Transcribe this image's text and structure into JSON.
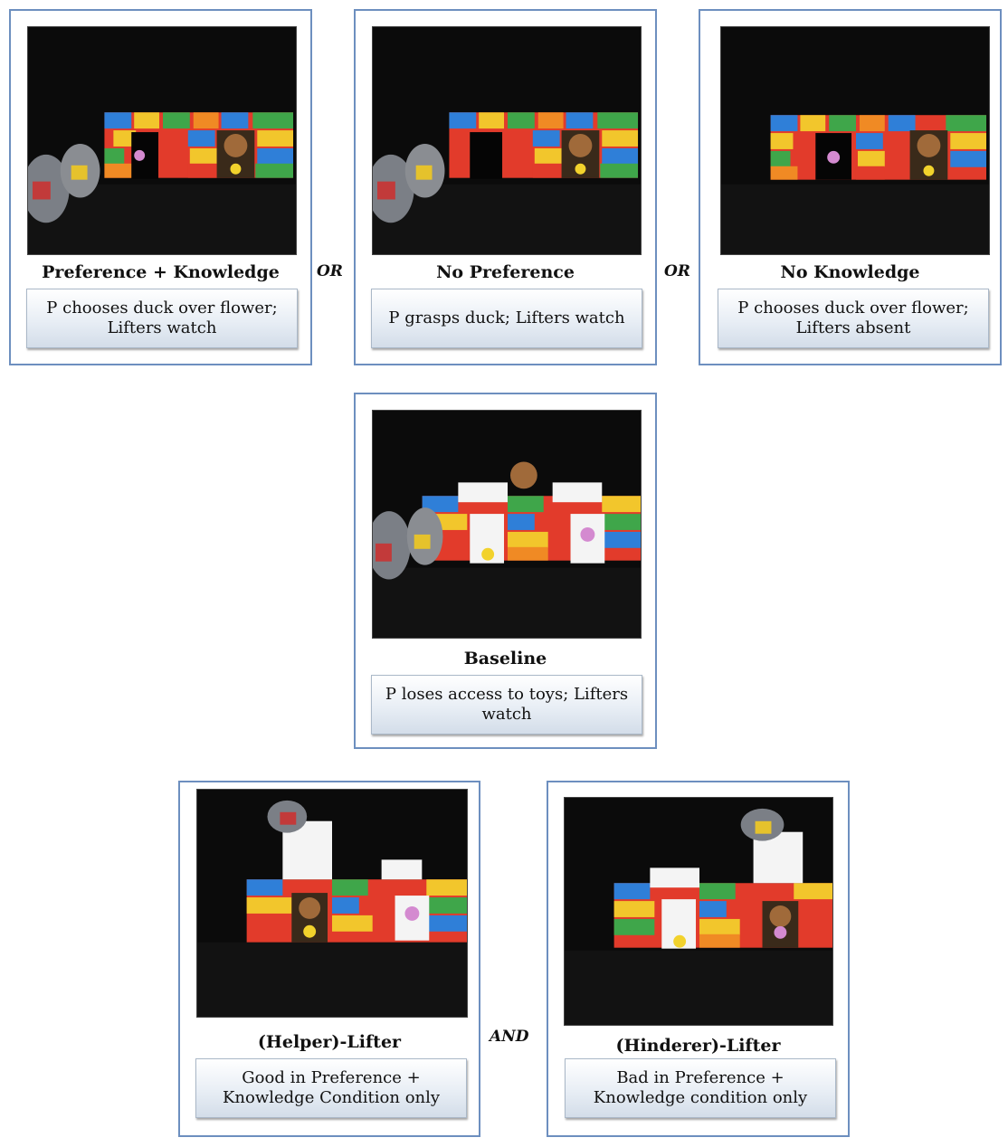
{
  "panels": {
    "pref_knowledge": {
      "title": "Preference + Knowledge",
      "desc": "P chooses duck over flower; Lifters watch"
    },
    "no_preference": {
      "title": "No Preference",
      "desc": "P grasps duck; Lifters watch"
    },
    "no_knowledge": {
      "title": "No Knowledge",
      "desc": "P chooses duck over flower; Lifters absent"
    },
    "baseline": {
      "title": "Baseline",
      "desc": "P loses access to toys; Lifters watch"
    },
    "helper": {
      "title": "(Helper)-Lifter",
      "desc": "Good in Preference + Knowledge Condition only"
    },
    "hinderer": {
      "title": "(Hinderer)-Lifter",
      "desc": "Bad in Preference + Knowledge condition only"
    }
  },
  "connectors": {
    "or_1": "OR",
    "or_2": "OR",
    "and": "AND"
  },
  "colors": {
    "panel_border": "#6d8fbf",
    "photo_background": "#0b0b0b"
  }
}
